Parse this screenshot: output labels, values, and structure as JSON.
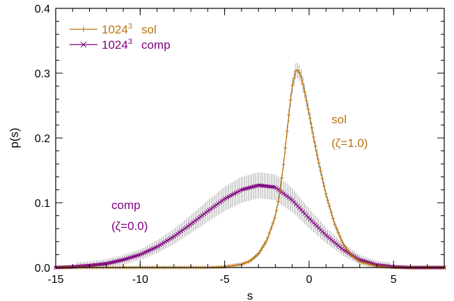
{
  "chart_data": {
    "type": "line",
    "title": "",
    "xlabel": "s",
    "ylabel": "p(s)",
    "xlim": [
      -15,
      8
    ],
    "ylim": [
      0,
      0.4
    ],
    "x_ticks": [
      "-15",
      "-10",
      "-5",
      "0",
      "5"
    ],
    "x_tick_values": [
      -15,
      -10,
      -5,
      0,
      5
    ],
    "y_ticks": [
      "0.0",
      "0.1",
      "0.2",
      "0.3",
      "0.4"
    ],
    "y_tick_values": [
      0,
      0.1,
      0.2,
      0.3,
      0.4
    ],
    "grid": false,
    "legend_position": "top-left",
    "series": [
      {
        "name": "1024",
        "name_superscript": "3",
        "name_suffix": "sol",
        "color": "#b8730f",
        "marker": "plus",
        "error_bars": true,
        "x": [
          -15,
          -6,
          -5,
          -4,
          -3.5,
          -3,
          -2.5,
          -2,
          -1.75,
          -1.5,
          -1.25,
          -1,
          -0.75,
          -0.5,
          -0.25,
          0,
          0.25,
          0.5,
          1,
          1.5,
          2,
          2.5,
          3,
          4,
          5,
          8
        ],
        "y": [
          0.0,
          0.0,
          0.001,
          0.005,
          0.01,
          0.021,
          0.042,
          0.079,
          0.112,
          0.162,
          0.224,
          0.28,
          0.307,
          0.298,
          0.27,
          0.238,
          0.203,
          0.17,
          0.113,
          0.068,
          0.037,
          0.019,
          0.009,
          0.002,
          0.0,
          0.0
        ]
      },
      {
        "name": "1024",
        "name_superscript": "3",
        "name_suffix": "comp",
        "color": "#800080",
        "marker": "x",
        "error_bars": true,
        "x": [
          -15,
          -14,
          -13,
          -12,
          -11,
          -10,
          -9,
          -8,
          -7,
          -6,
          -5,
          -4,
          -3,
          -2,
          -1,
          0,
          1,
          2,
          3,
          4,
          5,
          6,
          8
        ],
        "y": [
          0.0,
          0.001,
          0.003,
          0.006,
          0.012,
          0.02,
          0.032,
          0.048,
          0.067,
          0.087,
          0.106,
          0.12,
          0.127,
          0.124,
          0.104,
          0.076,
          0.05,
          0.028,
          0.012,
          0.004,
          0.001,
          0.0,
          0.0
        ]
      }
    ],
    "annotations": [
      {
        "line1": "sol",
        "line2": "(ζ=1.0)",
        "color": "#b8730f"
      },
      {
        "line1": "comp",
        "line2": "(ζ=0.0)",
        "color": "#800080"
      }
    ]
  }
}
